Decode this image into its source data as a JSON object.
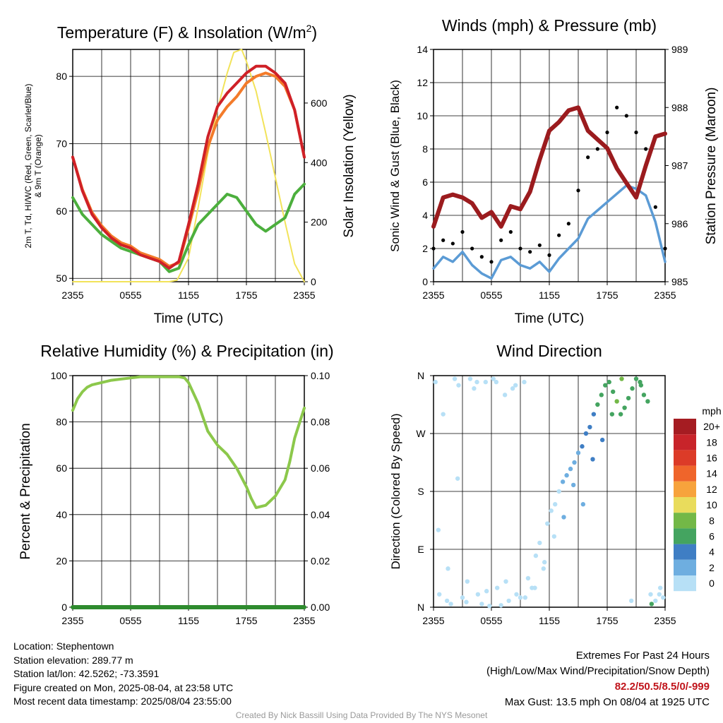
{
  "colors": {
    "temp": "#cf2027",
    "temp9m": "#f37b2a",
    "heat_index": "#e8a32a",
    "dewpoint": "#4caf3d",
    "insolation": "#f2e35a",
    "wind": "#5b9bd5",
    "gust": "#000000",
    "pressure": "#9b1b1e",
    "rh": "#8cc84b",
    "precip": "#2e8b2e",
    "grid": "#000000"
  },
  "chart_data": [
    {
      "type": "line",
      "title": "Temperature (F) & Insolation (W/m²)",
      "xlabel": "Time (UTC)",
      "ylabel": "2m T, Td, HI/WC (Red, Green, Scarlet/Blue) & 9m T (Orange)",
      "ylabel_right": "Solar Insolation (Yellow)",
      "x_ticks": [
        "2355",
        "0555",
        "1155",
        "1755",
        "2355"
      ],
      "y_ticks": [
        50,
        60,
        70,
        80
      ],
      "ylim": [
        49.5,
        84
      ],
      "y2_ticks": [
        0,
        200,
        400,
        600
      ],
      "y2lim": [
        0,
        780
      ],
      "xlim": [
        0,
        24
      ],
      "grid": true,
      "series": [
        {
          "name": "2m T",
          "color_key": "temp",
          "x": [
            0,
            1,
            2,
            3,
            4,
            5,
            6,
            7,
            8,
            9,
            10,
            11,
            12,
            13,
            14,
            15,
            16,
            17,
            18,
            19,
            20,
            21,
            22,
            23,
            24
          ],
          "values": [
            68,
            63,
            59.5,
            57.5,
            56,
            55,
            54.5,
            53.5,
            53,
            52.5,
            51.5,
            52.5,
            58,
            64,
            71,
            75.5,
            77.5,
            79,
            80.5,
            81.5,
            81.5,
            80.5,
            79,
            75,
            68
          ]
        },
        {
          "name": "9m T",
          "color_key": "temp9m",
          "x": [
            0,
            1,
            2,
            3,
            4,
            5,
            6,
            7,
            8,
            9,
            10,
            11,
            12,
            13,
            14,
            15,
            16,
            17,
            18,
            19,
            20,
            21,
            22,
            23,
            24
          ],
          "values": [
            68,
            63.2,
            59.8,
            57.8,
            56.3,
            55.3,
            54.8,
            53.8,
            53.3,
            52.8,
            51.8,
            52.3,
            57.5,
            63,
            69.5,
            73.5,
            75.5,
            77,
            79,
            80,
            80.5,
            80,
            78.5,
            75,
            68
          ]
        },
        {
          "name": "Td",
          "color_key": "dewpoint",
          "x": [
            0,
            1,
            2,
            3,
            4,
            5,
            6,
            7,
            8,
            9,
            10,
            11,
            12,
            13,
            14,
            15,
            16,
            17,
            18,
            19,
            20,
            21,
            22,
            23,
            24
          ],
          "values": [
            62,
            59.5,
            58,
            56.5,
            55.5,
            54.5,
            54,
            53.5,
            53,
            52.5,
            51,
            51.5,
            55,
            58,
            59.5,
            61,
            62.5,
            62,
            60,
            58,
            57,
            58,
            59,
            62.5,
            64
          ]
        },
        {
          "name": "Insolation",
          "color_key": "insolation",
          "axis": "right",
          "x": [
            0,
            10,
            10.8,
            12,
            13,
            14,
            15,
            16,
            16.7,
            17.5,
            18,
            19,
            20,
            21,
            22,
            23,
            24
          ],
          "values": [
            0,
            0,
            5,
            80,
            250,
            430,
            580,
            700,
            770,
            780,
            740,
            640,
            500,
            350,
            200,
            60,
            0
          ]
        }
      ]
    },
    {
      "type": "line",
      "title": "Winds (mph) & Pressure (mb)",
      "xlabel": "Time (UTC)",
      "ylabel": "Sonic Wind & Gust (Blue, Black)",
      "ylabel_right": "Station Pressure (Maroon)",
      "x_ticks": [
        "2355",
        "0555",
        "1155",
        "1755",
        "2355"
      ],
      "y_ticks": [
        0,
        2,
        4,
        6,
        8,
        10,
        12,
        14
      ],
      "ylim": [
        0,
        14
      ],
      "y2_ticks": [
        985,
        986,
        987,
        988,
        989
      ],
      "y2lim": [
        985,
        989
      ],
      "xlim": [
        0,
        24
      ],
      "grid": true,
      "series": [
        {
          "name": "Sonic Wind",
          "color_key": "wind",
          "x": [
            0,
            1,
            2,
            3,
            4,
            5,
            6,
            7,
            8,
            9,
            10,
            11,
            12,
            13,
            14,
            15,
            16,
            17,
            18,
            19,
            20,
            21,
            22,
            23,
            24
          ],
          "values": [
            0.8,
            1.5,
            1.2,
            1.8,
            1.0,
            0.5,
            0.2,
            1.3,
            1.5,
            1.0,
            0.8,
            1.2,
            0.6,
            1.4,
            2.0,
            2.6,
            3.8,
            4.3,
            4.8,
            5.3,
            5.8,
            5.6,
            5.2,
            3.6,
            1.2
          ]
        },
        {
          "name": "Gust",
          "color_key": "gust",
          "x": [
            0,
            1,
            2,
            3,
            4,
            5,
            6,
            7,
            8,
            9,
            10,
            11,
            12,
            13,
            14,
            15,
            16,
            17,
            18,
            19,
            20,
            21,
            22,
            23,
            24
          ],
          "values": [
            2.0,
            2.5,
            2.3,
            3.0,
            2.0,
            1.5,
            1.2,
            2.5,
            3.0,
            2.0,
            1.8,
            2.2,
            1.6,
            2.8,
            3.5,
            5.5,
            7.5,
            8.0,
            9.0,
            10.5,
            10.0,
            9.0,
            8.0,
            4.5,
            2.0
          ]
        },
        {
          "name": "Station Pressure",
          "color_key": "pressure",
          "axis": "right",
          "x": [
            0,
            1,
            2,
            3,
            4,
            5,
            6,
            7,
            8,
            9,
            10,
            11,
            12,
            13,
            14,
            15,
            16,
            17,
            18,
            19,
            20,
            21,
            22,
            23,
            24
          ],
          "values": [
            985.95,
            986.45,
            986.5,
            986.45,
            986.35,
            986.1,
            986.2,
            985.95,
            986.3,
            986.25,
            986.55,
            987.1,
            987.6,
            987.75,
            987.95,
            988.0,
            987.6,
            987.45,
            987.3,
            986.95,
            986.7,
            986.45,
            987.0,
            987.5,
            987.55
          ]
        }
      ]
    },
    {
      "type": "line",
      "title": "Relative Humidity (%) & Precipitation (in)",
      "xlabel": "",
      "ylabel": "Percent & Precipitation",
      "x_ticks": [
        "2355",
        "0555",
        "1155",
        "1755",
        "2355"
      ],
      "y_ticks": [
        0,
        20,
        40,
        60,
        80,
        100
      ],
      "ylim": [
        0,
        100
      ],
      "y2_ticks": [
        "0.00",
        "0.02",
        "0.04",
        "0.06",
        "0.08",
        "0.10"
      ],
      "y2lim": [
        0,
        0.1
      ],
      "xlim": [
        0,
        24
      ],
      "grid": true,
      "series": [
        {
          "name": "RH",
          "color_key": "rh",
          "x": [
            0,
            0.5,
            1,
            1.5,
            2,
            3,
            4,
            5,
            6,
            7,
            8,
            9,
            10,
            11,
            11.6,
            12,
            13,
            14,
            15,
            16,
            17,
            18,
            18.5,
            19,
            20,
            21,
            22,
            22.5,
            23,
            24
          ],
          "values": [
            85,
            90,
            93,
            95,
            96,
            97,
            98,
            98.5,
            99,
            99.5,
            99.5,
            99.5,
            99.5,
            99.5,
            99,
            97,
            88,
            76,
            70,
            66,
            60,
            52,
            47,
            43,
            44,
            48,
            55,
            63,
            73,
            86
          ]
        },
        {
          "name": "Precipitation",
          "color_key": "precip",
          "axis": "right",
          "x": [
            0,
            24
          ],
          "values": [
            0,
            0
          ]
        }
      ]
    },
    {
      "type": "scatter",
      "title": "Wind Direction",
      "ylabel": "Direction (Colored By Speed)",
      "x_ticks": [
        "2355",
        "0555",
        "1155",
        "1755",
        "2355"
      ],
      "y_ticks": [
        "N",
        "E",
        "S",
        "W",
        "N"
      ],
      "ylim": [
        0,
        360
      ],
      "xlim": [
        0,
        24
      ],
      "grid": true,
      "colorbar": {
        "label": "mph",
        "labels": [
          "20+",
          "18",
          "16",
          "14",
          "12",
          "10",
          "8",
          "6",
          "4",
          "2",
          "0"
        ],
        "colors": [
          "#a51c22",
          "#c8242a",
          "#dc3b28",
          "#ef652b",
          "#f7a33c",
          "#e9dc5c",
          "#73b847",
          "#44a460",
          "#3f7ec4",
          "#6eaee0",
          "#b7e0f6"
        ]
      },
      "series": [
        {
          "name": "direction",
          "x": [
            0.2,
            0.6,
            1.0,
            1.4,
            1.8,
            2.2,
            2.6,
            3.0,
            3.4,
            3.8,
            4.2,
            4.6,
            5.0,
            5.4,
            5.8,
            6.2,
            6.6,
            7.0,
            7.4,
            7.8,
            8.2,
            8.6,
            9.0,
            9.4,
            9.8,
            10.2,
            10.6,
            11.0,
            11.4,
            11.8,
            12.2,
            12.6,
            13.0,
            13.4,
            13.8,
            14.2,
            14.6,
            15.0,
            15.4,
            15.8,
            16.2,
            16.6,
            17.0,
            17.4,
            17.8,
            18.2,
            18.6,
            19.0,
            19.4,
            19.8,
            20.2,
            20.6,
            21.0,
            21.4,
            21.8,
            22.2,
            22.6,
            23.0,
            23.4,
            23.8,
            0.5,
            1.5,
            2.5,
            3.5,
            4.5,
            5.5,
            6.5,
            7.5,
            8.5,
            9.5,
            10.5,
            11.5,
            12.5,
            13.5,
            14.5,
            15.5,
            16.5,
            17.5,
            18.5,
            19.5,
            20.5,
            21.5,
            22.5,
            23.5
          ],
          "values": [
            350,
            20,
            300,
            10,
            5,
            355,
            345,
            15,
            8,
            355,
            340,
            20,
            5,
            350,
            2,
            355,
            30,
            3,
            330,
            10,
            340,
            20,
            15,
            350,
            45,
            30,
            80,
            100,
            60,
            130,
            150,
            160,
            180,
            195,
            205,
            215,
            225,
            240,
            250,
            270,
            280,
            300,
            315,
            330,
            345,
            350,
            335,
            320,
            300,
            310,
            325,
            340,
            355,
            350,
            330,
            320,
            5,
            10,
            20,
            15,
            120,
            60,
            200,
            40,
            350,
            25,
            350,
            40,
            345,
            15,
            30,
            70,
            110,
            140,
            190,
            160,
            230,
            260,
            300,
            355,
            10,
            345,
            20,
            30
          ],
          "speeds": [
            1,
            1,
            1,
            1,
            1,
            1,
            1,
            1,
            1,
            1,
            1,
            1,
            1,
            1,
            1,
            1,
            1,
            1,
            1,
            1,
            1,
            1,
            1,
            1,
            1,
            1,
            1,
            1,
            1,
            1,
            1,
            1,
            1,
            2,
            2,
            3,
            3,
            3,
            4,
            5,
            5,
            5,
            6,
            6,
            7,
            7,
            7,
            8,
            7,
            6,
            6,
            6,
            7,
            7,
            6,
            7,
            7,
            1,
            1,
            1,
            1,
            1,
            1,
            1,
            1,
            1,
            1,
            1,
            1,
            1,
            1,
            1,
            1,
            2,
            3,
            3,
            4,
            5,
            6,
            8,
            1,
            7,
            1,
            1
          ]
        }
      ]
    }
  ],
  "info": {
    "location": "Location: Stephentown",
    "elevation": "Station elevation: 289.77 m",
    "latlon": "Station lat/lon: 42.5262; -73.3591",
    "created": "Figure created on Mon, 2025-08-04, at 23:58 UTC",
    "recent": "Most recent data timestamp: 2025/08/04 23:55:00"
  },
  "extremes": {
    "heading": "Extremes For Past 24 Hours",
    "legend": "(High/Low/Max Wind/Precipitation/Snow Depth)",
    "values": "82.2/50.5/8.5/0/-999",
    "max_gust": "Max Gust: 13.5 mph On 08/04 at 1925 UTC"
  },
  "credit": "Created By Nick Bassill Using Data Provided By The NYS Mesonet"
}
